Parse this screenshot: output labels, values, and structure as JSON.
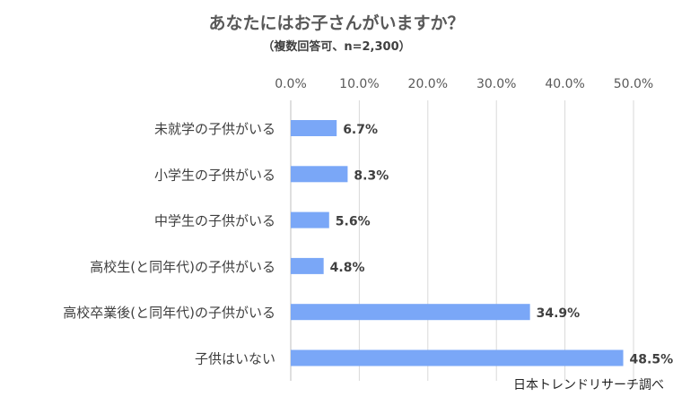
{
  "chart_data": {
    "type": "bar",
    "orientation": "horizontal",
    "title": "あなたにはお子さんがいますか？",
    "subtitle": "（複数回答可、n=2,300）",
    "categories": [
      "未就学の子供がいる",
      "小学生の子供がいる",
      "中学生の子供がいる",
      "高校生(と同年代)の子供がいる",
      "高校卒業後(と同年代)の子供がいる",
      "子供はいない"
    ],
    "values": [
      6.7,
      8.3,
      5.6,
      4.8,
      34.9,
      48.5
    ],
    "value_labels": [
      "6.7%",
      "8.3%",
      "5.6%",
      "4.8%",
      "34.9%",
      "48.5%"
    ],
    "x_ticks": [
      "0.0%",
      "10.0%",
      "20.0%",
      "30.0%",
      "40.0%",
      "50.0%"
    ],
    "xlim": [
      0,
      50
    ],
    "tick_axis_position": "top",
    "grid": true,
    "bar_color": "#7aa7f7",
    "gridline_color": "#d9d9d9"
  },
  "source_note": "日本トレンドリサーチ調べ"
}
